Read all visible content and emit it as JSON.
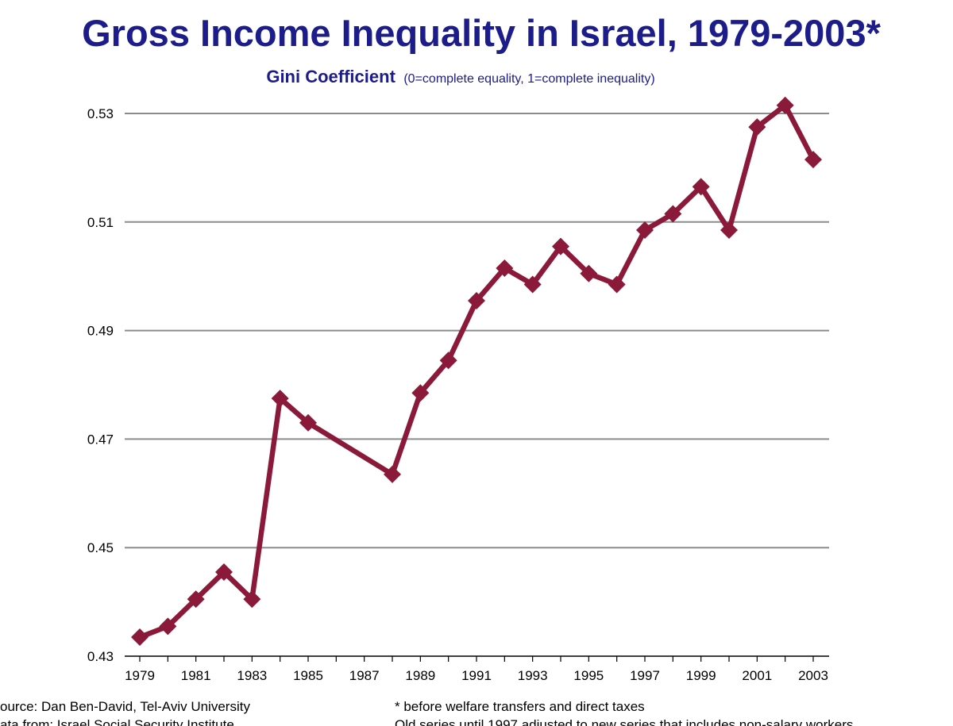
{
  "chart_data": {
    "type": "line",
    "title": "Gross Income Inequality in Israel, 1979-2003*",
    "subtitle_main": "Gini Coefficient",
    "subtitle_note": "(0=complete equality, 1=complete inequality)",
    "xlabel": "",
    "ylabel": "",
    "ylim": [
      0.43,
      0.53
    ],
    "y_ticks": [
      "0.43",
      "0.45",
      "0.47",
      "0.49",
      "0.51",
      "0.53"
    ],
    "xlim": [
      1979,
      2003
    ],
    "x_ticks": [
      "1979",
      "1981",
      "1983",
      "1985",
      "1987",
      "1989",
      "1991",
      "1993",
      "1995",
      "1997",
      "1999",
      "2001",
      "2003"
    ],
    "grid": true,
    "series": [
      {
        "color": "#8b1a3a",
        "x": [
          1979,
          1980,
          1981,
          1982,
          1983,
          1984,
          1985,
          1988,
          1989,
          1990,
          1991,
          1992,
          1993,
          1994,
          1995,
          1996,
          1997,
          1998,
          1999,
          2000,
          2001,
          2002,
          2003
        ],
        "y": [
          0.4335,
          0.4355,
          0.4405,
          0.4455,
          0.4405,
          0.4775,
          0.473,
          0.4635,
          0.4785,
          0.4845,
          0.4955,
          0.5015,
          0.4985,
          0.5055,
          0.5005,
          0.4985,
          0.5085,
          0.5115,
          0.5165,
          0.5085,
          0.5275,
          0.5315,
          0.5215
        ]
      }
    ]
  },
  "footer": {
    "source": "ource: Dan Ben-David, Tel-Aviv University",
    "data_from": "ata from: Israel Social Security Institute",
    "note1": "* before welfare transfers and direct taxes",
    "note2": "Old series until 1997 adjusted to new series that includes non-salary workers"
  },
  "colors": {
    "title": "#1c1c8a",
    "line": "#8b1a3a",
    "grid": "#8c8c8c"
  }
}
